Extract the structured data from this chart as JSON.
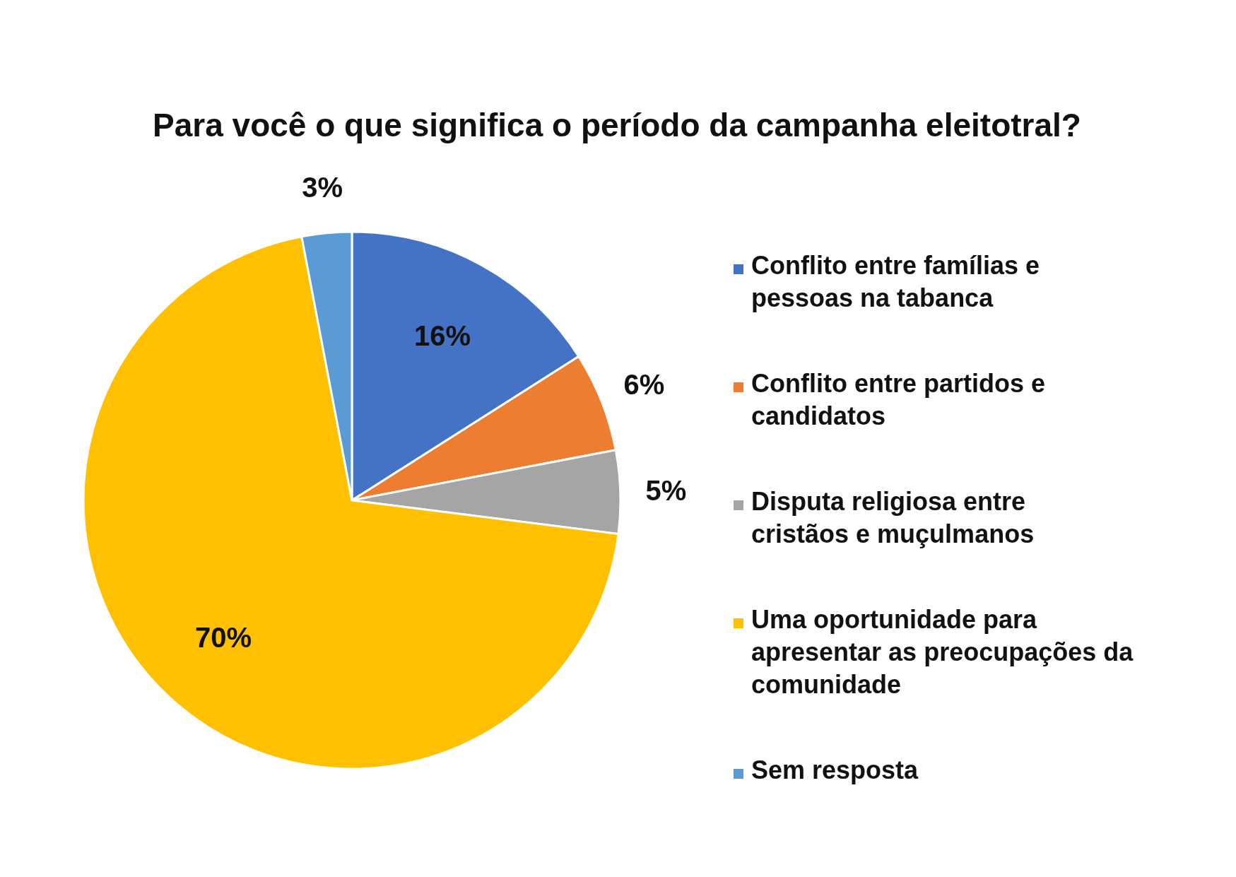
{
  "chart_data": {
    "type": "pie",
    "title": "Para você o que significa o período da campanha eleitotral?",
    "categories": [
      "Conflito entre famílias e pessoas na tabanca",
      "Conflito entre partidos e candidatos",
      "Disputa religiosa entre cristãos e muçulmanos",
      "Uma oportunidade para apresentar as preocupações da comunidade",
      "Sem resposta"
    ],
    "values": [
      16,
      6,
      5,
      70,
      3
    ],
    "colors": [
      "#4472c4",
      "#ed7d31",
      "#a5a5a5",
      "#ffc000",
      "#5b9bd5"
    ],
    "value_labels": [
      "16%",
      "6%",
      "5%",
      "70%",
      "3%"
    ],
    "legend": "right"
  }
}
